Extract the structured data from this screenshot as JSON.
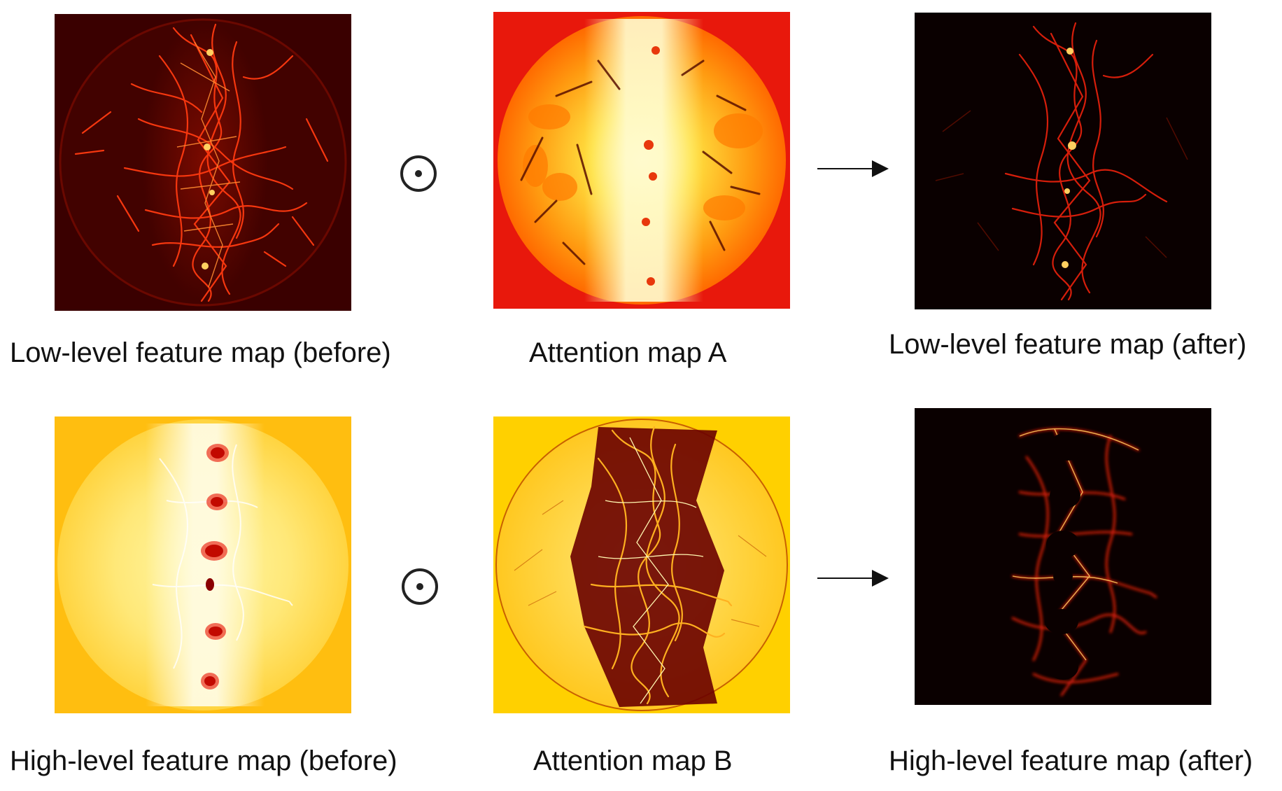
{
  "operators": {
    "multiply_symbol": "⊙",
    "arrow_symbol": "→"
  },
  "rows": [
    {
      "before_label": "Low-level feature map (before)",
      "attention_label": "Attention map A",
      "after_label": "Low-level feature map (after)"
    },
    {
      "before_label": "High-level feature map (before)",
      "attention_label": "Attention map B",
      "after_label": "High-level feature map (after)"
    }
  ],
  "colors": {
    "dark_red": "#3a0000",
    "red": "#e8140c",
    "orange": "#ff7a00",
    "yellow": "#ffd000",
    "pale_yellow": "#fff6a0",
    "black": "#0a0000"
  }
}
